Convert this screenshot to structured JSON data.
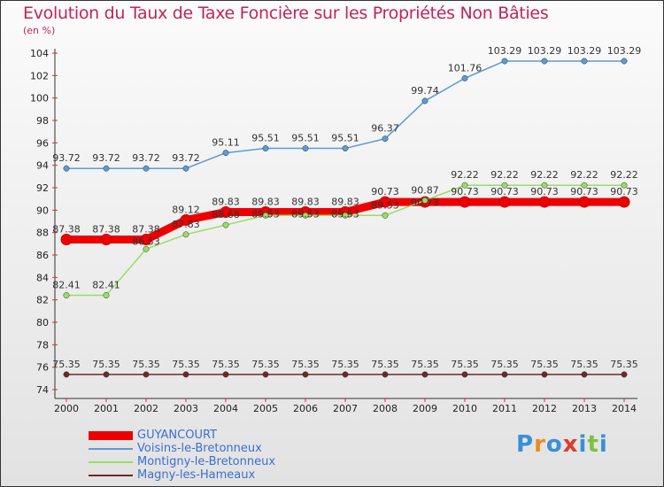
{
  "chart_data": {
    "type": "line",
    "title": "Evolution du Taux de Taxe Foncière sur les Propriétés Non Bâties",
    "subtitle": "(en %)",
    "x": [
      "2000",
      "2001",
      "2002",
      "2003",
      "2004",
      "2005",
      "2006",
      "2007",
      "2008",
      "2009",
      "2010",
      "2011",
      "2012",
      "2013",
      "2014"
    ],
    "yticks": [
      "74",
      "76",
      "78",
      "80",
      "82",
      "84",
      "86",
      "88",
      "90",
      "92",
      "94",
      "96",
      "98",
      "100",
      "102",
      "104"
    ],
    "ylim": [
      74,
      104
    ],
    "grid": false,
    "legend_position": "bottom-left",
    "series": [
      {
        "name": "GUYANCOURT",
        "color": "#ee0000",
        "values": [
          87.38,
          87.38,
          87.38,
          89.12,
          89.83,
          89.83,
          89.83,
          89.83,
          90.73,
          90.73,
          90.73,
          90.73,
          90.73,
          90.73,
          90.73
        ]
      },
      {
        "name": "Voisins-le-Bretonneux",
        "color": "#5b9bd5",
        "values": [
          93.72,
          93.72,
          93.72,
          93.72,
          95.11,
          95.51,
          95.51,
          95.51,
          96.37,
          99.74,
          101.76,
          103.29,
          103.29,
          103.29,
          103.29
        ]
      },
      {
        "name": "Montigny-le-Bretonneux",
        "color": "#99dd66",
        "values": [
          82.41,
          82.41,
          86.53,
          87.83,
          88.68,
          89.53,
          89.53,
          89.53,
          89.53,
          90.87,
          92.22,
          92.22,
          92.22,
          92.22,
          92.22
        ]
      },
      {
        "name": "Magny-les-Hameaux",
        "color": "#6b2a2a",
        "values": [
          75.35,
          75.35,
          75.35,
          75.35,
          75.35,
          75.35,
          75.35,
          75.35,
          75.35,
          75.35,
          75.35,
          75.35,
          75.35,
          75.35,
          75.35
        ]
      }
    ]
  },
  "logo": {
    "text": "Proxiti",
    "letters": [
      "P",
      "r",
      "o",
      "x",
      "i",
      "t",
      "i"
    ]
  }
}
